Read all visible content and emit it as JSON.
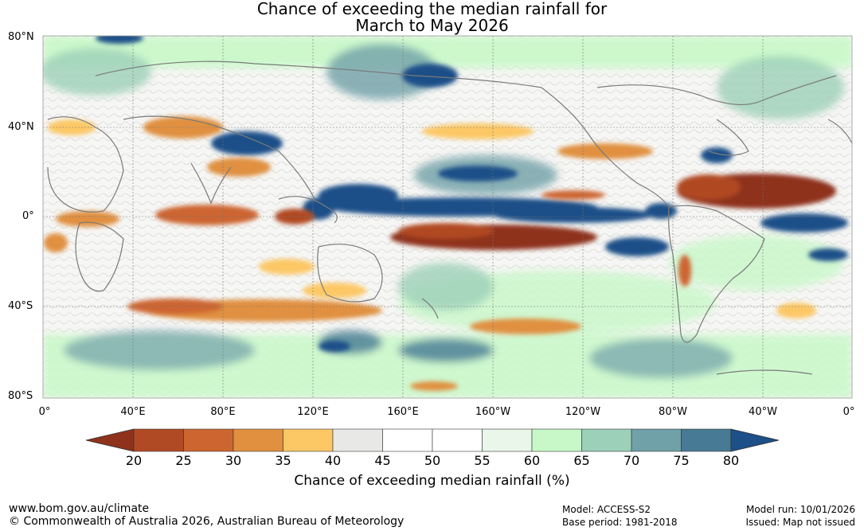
{
  "title": {
    "line1": "Chance of exceeding the median rainfall for",
    "line2": "March to May 2026"
  },
  "lat_labels": [
    "80°N",
    "40°N",
    "0°",
    "40°S",
    "80°S"
  ],
  "lon_labels": [
    "0°",
    "40°E",
    "80°E",
    "120°E",
    "160°E",
    "160°W",
    "120°W",
    "80°W",
    "40°W",
    "0°"
  ],
  "colorbar": {
    "ticks": [
      "20",
      "25",
      "30",
      "35",
      "40",
      "45",
      "50",
      "55",
      "60",
      "65",
      "70",
      "75",
      "80"
    ],
    "colors": [
      "#8e321c",
      "#b04a24",
      "#cc6530",
      "#e0903f",
      "#fcc866",
      "#e8e8e6",
      "#ffffff",
      "#ffffff",
      "#eaf6ea",
      "#c8f8c8",
      "#9cd0b8",
      "#70a0a8",
      "#477a94",
      "#1d4f88"
    ],
    "title": "Chance of exceeding median rainfall (%)"
  },
  "footer": {
    "url": "www.bom.gov.au/climate",
    "copyright": "© Commonwealth of Australia 2026, Australian Bureau of Meteorology",
    "model": "Model: ACCESS-S2",
    "base_period": "Base period: 1981-2018",
    "model_run": "Model run: 10/01/2026",
    "issued": "Issued: Map not issued"
  }
}
